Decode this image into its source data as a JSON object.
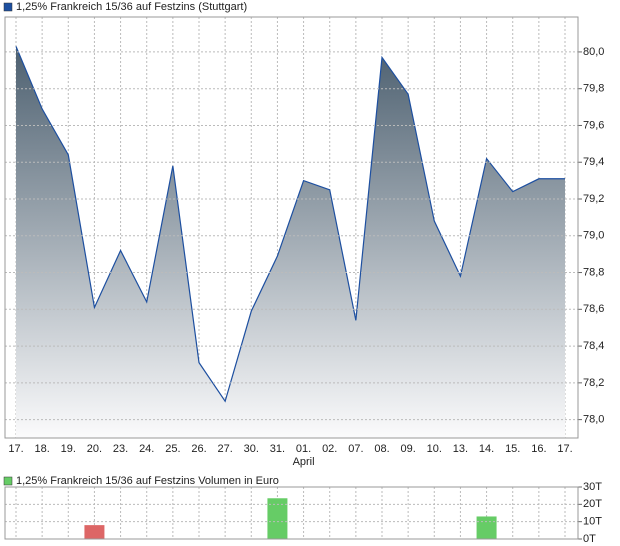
{
  "chart_data": [
    {
      "type": "area",
      "title": "1,25% Frankreich 15/36 auf Festzins (Stuttgart)",
      "categories": [
        "17.",
        "18.",
        "19.",
        "20.",
        "23.",
        "24.",
        "25.",
        "26.",
        "27.",
        "30.",
        "31.",
        "01.",
        "02.",
        "07.",
        "08.",
        "09.",
        "10.",
        "13.",
        "14.",
        "15.",
        "16.",
        "17."
      ],
      "values": [
        80.03,
        79.69,
        79.44,
        78.61,
        78.92,
        78.64,
        79.38,
        78.31,
        78.1,
        78.59,
        78.89,
        79.3,
        79.25,
        78.54,
        79.97,
        79.77,
        79.08,
        78.78,
        79.42,
        79.24,
        79.31,
        79.31
      ],
      "color": "#1d4fa0",
      "month_label": "April",
      "ylim": [
        77.9,
        80.19
      ],
      "yticks": [
        {
          "value": 78.0,
          "label": "78,0"
        },
        {
          "value": 78.2,
          "label": "78,2"
        },
        {
          "value": 78.4,
          "label": "78,4"
        },
        {
          "value": 78.6,
          "label": "78,6"
        },
        {
          "value": 78.8,
          "label": "78,8"
        },
        {
          "value": 79.0,
          "label": "79,0"
        },
        {
          "value": 79.2,
          "label": "79,2"
        },
        {
          "value": 79.4,
          "label": "79,4"
        },
        {
          "value": 79.6,
          "label": "79,6"
        },
        {
          "value": 79.8,
          "label": "79,8"
        },
        {
          "value": 80.0,
          "label": "80,0"
        }
      ],
      "grid": true
    },
    {
      "type": "bar",
      "title": "1,25% Frankreich 15/36 auf Festzins Volumen in Euro",
      "values": [
        0,
        0,
        0,
        8000,
        0,
        0,
        0,
        0,
        0,
        0,
        23500,
        0,
        0,
        0,
        0,
        0,
        0,
        0,
        13000,
        0,
        0,
        0
      ],
      "colors": [
        "#66cc66",
        "#66cc66",
        "#66cc66",
        "#dd6666",
        "#66cc66",
        "#66cc66",
        "#66cc66",
        "#66cc66",
        "#66cc66",
        "#66cc66",
        "#66cc66",
        "#66cc66",
        "#66cc66",
        "#66cc66",
        "#66cc66",
        "#66cc66",
        "#66cc66",
        "#66cc66",
        "#66cc66",
        "#66cc66",
        "#66cc66",
        "#66cc66"
      ],
      "color": "#66cc66",
      "ylim": [
        0,
        30000
      ],
      "yticks": [
        {
          "value": 0,
          "label": "0T"
        },
        {
          "value": 10000,
          "label": "10T"
        },
        {
          "value": 20000,
          "label": "20T"
        },
        {
          "value": 30000,
          "label": "30T"
        }
      ],
      "grid": true
    }
  ]
}
